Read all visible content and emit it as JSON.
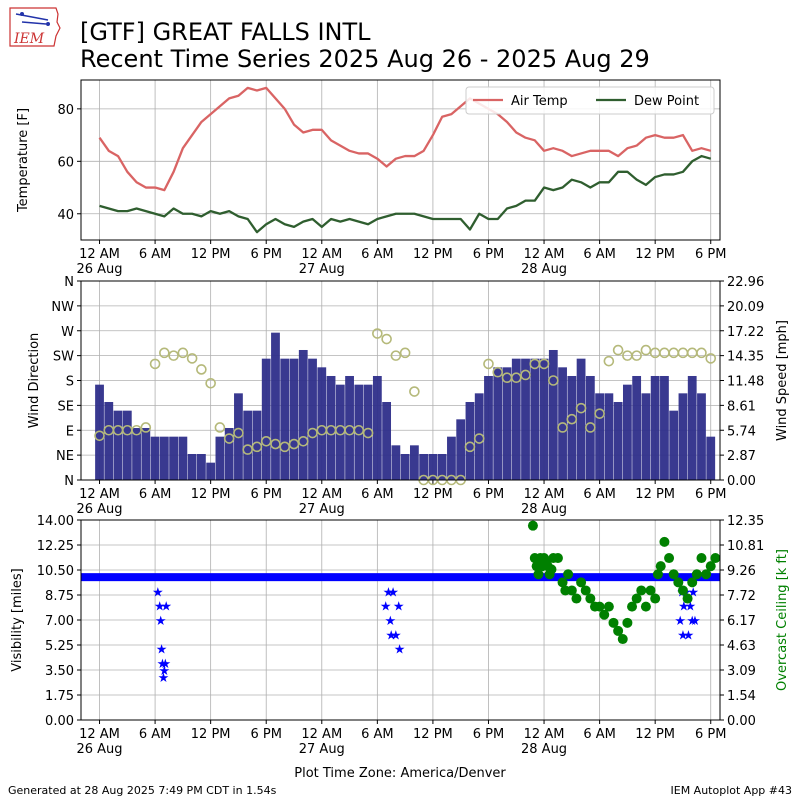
{
  "header": {
    "logo_text": "IEM",
    "title_line1": "[GTF] GREAT FALLS INTL",
    "title_line2": "Recent Time Series 2025 Aug 26 - 2025 Aug 29"
  },
  "footer": {
    "generated": "Generated at 28 Aug 2025 7:49 PM CDT in 1.54s",
    "app": "IEM Autoplot App #43",
    "timezone_label": "Plot Time Zone: America/Denver"
  },
  "colors": {
    "air_temp": "#d96464",
    "dew_point": "#2f5e2f",
    "wind_bar": "#2e2e8a",
    "wind_dir": "#b5b97a",
    "visibility": "#0000ff",
    "ceiling": "#008000",
    "grid": "#b0b0b0"
  },
  "x_axis": {
    "range_hours": [
      -2,
      67
    ],
    "ticks": [
      {
        "hour": 0,
        "label": "12 AM",
        "date": "26 Aug"
      },
      {
        "hour": 6,
        "label": "6 AM",
        "date": ""
      },
      {
        "hour": 12,
        "label": "12 PM",
        "date": ""
      },
      {
        "hour": 18,
        "label": "6 PM",
        "date": ""
      },
      {
        "hour": 24,
        "label": "12 AM",
        "date": "27 Aug"
      },
      {
        "hour": 30,
        "label": "6 AM",
        "date": ""
      },
      {
        "hour": 36,
        "label": "12 PM",
        "date": ""
      },
      {
        "hour": 42,
        "label": "6 PM",
        "date": ""
      },
      {
        "hour": 48,
        "label": "12 AM",
        "date": "28 Aug"
      },
      {
        "hour": 54,
        "label": "6 AM",
        "date": ""
      },
      {
        "hour": 60,
        "label": "12 PM",
        "date": ""
      },
      {
        "hour": 66,
        "label": "6 PM",
        "date": ""
      }
    ]
  },
  "chart_data": [
    {
      "type": "line",
      "ylabel": "Temperature [F]",
      "ylim": [
        30,
        91
      ],
      "yticks": [
        40,
        60,
        80
      ],
      "legend": {
        "placement": "top-right",
        "entries": [
          "Air Temp",
          "Dew Point"
        ]
      },
      "x_hours": [
        0,
        1,
        2,
        3,
        4,
        5,
        6,
        7,
        8,
        9,
        10,
        11,
        12,
        13,
        14,
        15,
        16,
        17,
        18,
        19,
        20,
        21,
        22,
        23,
        24,
        25,
        26,
        27,
        28,
        29,
        30,
        31,
        32,
        33,
        34,
        35,
        36,
        37,
        38,
        39,
        40,
        41,
        42,
        43,
        44,
        45,
        46,
        47,
        48,
        49,
        50,
        51,
        52,
        53,
        54,
        55,
        56,
        57,
        58,
        59,
        60,
        61,
        62,
        63,
        64,
        65,
        66
      ],
      "series": [
        {
          "name": "Air Temp",
          "values": [
            69,
            64,
            62,
            56,
            52,
            50,
            50,
            49,
            56,
            65,
            70,
            75,
            78,
            81,
            84,
            85,
            88,
            87,
            88,
            84,
            80,
            74,
            71,
            72,
            72,
            68,
            66,
            64,
            63,
            63,
            61,
            58,
            61,
            62,
            62,
            64,
            70,
            77,
            78,
            81,
            84,
            82,
            80,
            78,
            75,
            71,
            69,
            68,
            64,
            65,
            64,
            62,
            63,
            64,
            64,
            64,
            62,
            65,
            66,
            69,
            70,
            69,
            69,
            70,
            64,
            65,
            64
          ]
        },
        {
          "name": "Dew Point",
          "values": [
            43,
            42,
            41,
            41,
            42,
            41,
            40,
            39,
            42,
            40,
            40,
            39,
            41,
            40,
            41,
            39,
            38,
            33,
            36,
            38,
            36,
            35,
            37,
            38,
            35,
            38,
            37,
            38,
            37,
            36,
            38,
            39,
            40,
            40,
            40,
            39,
            38,
            38,
            38,
            38,
            34,
            40,
            38,
            38,
            42,
            43,
            45,
            45,
            50,
            49,
            50,
            53,
            52,
            50,
            52,
            52,
            56,
            56,
            53,
            51,
            54,
            55,
            55,
            56,
            60,
            62,
            61
          ]
        }
      ]
    },
    {
      "type": "bar",
      "ylabel": "Wind Direction",
      "y2label": "Wind Speed [mph]",
      "ylim": [
        0,
        360
      ],
      "yticks": [
        {
          "value": 0,
          "label": "N"
        },
        {
          "value": 45,
          "label": "NE"
        },
        {
          "value": 90,
          "label": "E"
        },
        {
          "value": 135,
          "label": "SE"
        },
        {
          "value": 180,
          "label": "S"
        },
        {
          "value": 225,
          "label": "SW"
        },
        {
          "value": 270,
          "label": "W"
        },
        {
          "value": 315,
          "label": "NW"
        },
        {
          "value": 360,
          "label": "N"
        }
      ],
      "y2lim": [
        0,
        22.96
      ],
      "y2ticks": [
        "0.00",
        "2.87",
        "5.74",
        "8.61",
        "11.48",
        "14.35",
        "17.22",
        "20.09",
        "22.96"
      ],
      "x_hours": [
        0,
        1,
        2,
        3,
        4,
        5,
        6,
        7,
        8,
        9,
        10,
        11,
        12,
        13,
        14,
        15,
        16,
        17,
        18,
        19,
        20,
        21,
        22,
        23,
        24,
        25,
        26,
        27,
        28,
        29,
        30,
        31,
        32,
        33,
        34,
        35,
        36,
        37,
        38,
        39,
        40,
        41,
        42,
        43,
        44,
        45,
        46,
        47,
        48,
        49,
        50,
        51,
        52,
        53,
        54,
        55,
        56,
        57,
        58,
        59,
        60,
        61,
        62,
        63,
        64,
        65,
        66
      ],
      "series": [
        {
          "name": "Wind Speed",
          "unit": "mph",
          "values": [
            11,
            9,
            8,
            8,
            6,
            6,
            5,
            5,
            5,
            5,
            3,
            3,
            2,
            5,
            6,
            10,
            8,
            8,
            14,
            17,
            14,
            14,
            15,
            14,
            13,
            12,
            11,
            12,
            11,
            11,
            12,
            9,
            4,
            3,
            4,
            3,
            3,
            3,
            5,
            7,
            9,
            10,
            12,
            13,
            13,
            14,
            14,
            14,
            14,
            15,
            13,
            12,
            14,
            12,
            10,
            10,
            9,
            11,
            12,
            10,
            12,
            12,
            8,
            10,
            12,
            10,
            5
          ]
        },
        {
          "name": "Wind Direction",
          "unit": "deg",
          "values": [
            80,
            90,
            90,
            90,
            90,
            95,
            210,
            230,
            225,
            230,
            220,
            200,
            175,
            95,
            75,
            85,
            55,
            60,
            70,
            65,
            60,
            65,
            70,
            85,
            90,
            90,
            90,
            90,
            90,
            85,
            265,
            255,
            225,
            230,
            160,
            0,
            0,
            0,
            0,
            0,
            60,
            75,
            210,
            195,
            185,
            185,
            190,
            210,
            210,
            180,
            95,
            110,
            130,
            95,
            120,
            215,
            235,
            225,
            225,
            235,
            230,
            230,
            230,
            230,
            230,
            230,
            220
          ]
        }
      ]
    },
    {
      "type": "scatter",
      "ylabel": "Visibility [miles]",
      "y2label": "Overcast Ceiling [k ft]",
      "ylim": [
        0,
        14
      ],
      "yticks": [
        "0.00",
        "1.75",
        "3.50",
        "5.25",
        "7.00",
        "8.75",
        "10.50",
        "12.25",
        "14.00"
      ],
      "y2lim": [
        0,
        12.35
      ],
      "y2ticks": [
        "0.00",
        "1.54",
        "3.09",
        "4.63",
        "6.17",
        "7.72",
        "9.26",
        "10.81",
        "12.35"
      ],
      "series": [
        {
          "name": "Visibility",
          "baseline": 10,
          "baseline_range_hours": [
            -2,
            67
          ],
          "x_hours": [
            6.3,
            6.5,
            6.6,
            6.7,
            6.8,
            6.9,
            7.0,
            7.1,
            7.2,
            30.9,
            31.2,
            31.4,
            31.5,
            31.7,
            32.0,
            32.3,
            32.4,
            62.7,
            62.9,
            63.0,
            63.1,
            63.3,
            63.6,
            63.8,
            64.0,
            64.1,
            64.3
          ],
          "values": [
            9,
            8,
            7,
            5,
            4,
            3,
            3.5,
            4,
            8,
            8,
            9,
            7,
            6,
            9,
            6,
            8,
            5,
            7,
            9,
            6,
            8,
            9,
            6,
            8,
            7,
            9,
            7
          ]
        },
        {
          "name": "Ceiling",
          "x_hours": [
            46.8,
            47.0,
            47.2,
            47.4,
            47.6,
            47.8,
            48.0,
            48.2,
            48.4,
            48.6,
            48.8,
            49.0,
            49.5,
            50.0,
            50.3,
            50.6,
            51.0,
            51.5,
            52.0,
            52.5,
            53.0,
            53.5,
            54.0,
            54.5,
            55.0,
            55.5,
            56.0,
            56.5,
            57.0,
            57.5,
            58.0,
            58.5,
            59.0,
            59.5,
            60.0,
            60.3,
            60.6,
            61.0,
            61.5,
            62.0,
            62.5,
            63.0,
            63.5,
            64.0,
            64.5,
            65.0,
            65.5,
            66.0,
            66.5
          ],
          "values": [
            12.0,
            10.0,
            9.5,
            9.0,
            10.0,
            9.5,
            10.0,
            9.8,
            9.5,
            9.0,
            9.3,
            10.0,
            10.0,
            8.5,
            8.0,
            9.0,
            8.0,
            7.5,
            8.5,
            8.0,
            7.5,
            7.0,
            7.0,
            6.5,
            7.0,
            6.0,
            5.5,
            5.0,
            6.0,
            7.0,
            7.5,
            8.0,
            7.0,
            8.0,
            7.5,
            9.0,
            9.5,
            11.0,
            10.0,
            9.0,
            8.5,
            8.0,
            7.5,
            8.5,
            9.0,
            10.0,
            9.0,
            9.5,
            10.0
          ]
        }
      ]
    }
  ]
}
